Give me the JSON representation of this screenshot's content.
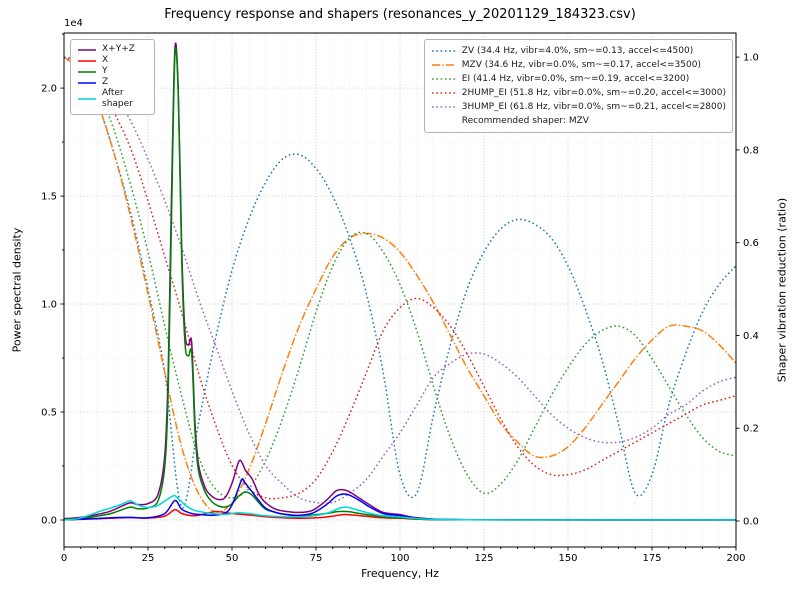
{
  "chart": {
    "title": "Frequency response and shapers (resonances_y_20201129_184323.csv)",
    "xlabel": "Frequency, Hz",
    "ylabel_left": "Power spectral density",
    "ylabel_right": "Shaper vibration reduction (ratio)",
    "offset_text": "1e4"
  },
  "legend_psd": {
    "items": [
      {
        "label": "X+Y+Z",
        "color": "#800080",
        "dash": "none"
      },
      {
        "label": "X",
        "color": "#ff0000",
        "dash": "none"
      },
      {
        "label": "Y",
        "color": "#008000",
        "dash": "none"
      },
      {
        "label": "Z",
        "color": "#0000ff",
        "dash": "none"
      },
      {
        "label": "After shaper",
        "color": "#00d7d7",
        "dash": "none"
      }
    ]
  },
  "legend_shapers": {
    "items": [
      {
        "label": "ZV (34.4 Hz, vibr=4.0%, sm~=0.13, accel<=4500)",
        "color": "#1f77b4",
        "dash": "dotted"
      },
      {
        "label": "MZV (34.6 Hz, vibr=0.0%, sm~=0.17, accel<=3500)",
        "color": "#ff7f0e",
        "dash": "dashdot"
      },
      {
        "label": "EI (41.4 Hz, vibr=0.0%, sm~=0.19, accel<=3200)",
        "color": "#2ca02c",
        "dash": "dotted"
      },
      {
        "label": "2HUMP_EI (51.8 Hz, vibr=0.0%, sm~=0.20, accel<=3000)",
        "color": "#d62728",
        "dash": "dotted"
      },
      {
        "label": "3HUMP_EI (61.8 Hz, vibr=0.0%, sm~=0.21, accel<=2800)",
        "color": "#9467bd",
        "dash": "dotted"
      }
    ],
    "recommended": "Recommended shaper: MZV"
  },
  "chart_data": {
    "type": "line",
    "title": "Frequency response and shapers (resonances_y_20201129_184323.csv)",
    "xlabel": "Frequency, Hz",
    "ylabel_left": "Power spectral density",
    "ylabel_right": "Shaper vibration reduction (ratio)",
    "grid": {
      "major_color": "#bdbdbd",
      "minor_color": "#e8e8e8"
    },
    "x_axis": {
      "lim": [
        0,
        200
      ],
      "ticks": [
        0,
        25,
        50,
        75,
        100,
        125,
        150,
        175,
        200
      ],
      "tick_labels": [
        "0",
        "25",
        "50",
        "75",
        "100",
        "125",
        "150",
        "175",
        "200"
      ],
      "minor_step": 5
    },
    "y_axis_left": {
      "lim": [
        -1250,
        22550
      ],
      "ticks": [
        0,
        5000,
        10000,
        15000,
        20000
      ],
      "tick_labels": [
        "0.0",
        "0.5",
        "1.0",
        "1.5",
        "2.0"
      ],
      "offset_text": "1e4",
      "minor_step": 2500
    },
    "y_axis_right": {
      "lim": [
        -0.056,
        1.052
      ],
      "ticks": [
        0,
        0.2,
        0.4,
        0.6,
        0.8,
        1.0
      ],
      "tick_labels": [
        "0.0",
        "0.2",
        "0.4",
        "0.6",
        "0.8",
        "1.0"
      ]
    },
    "psd_series": [
      {
        "name": "X+Y+Z",
        "color": "#800080",
        "style": "solid",
        "x": [
          0,
          5,
          10,
          14,
          18,
          20,
          22,
          25,
          28,
          30,
          31,
          32,
          33,
          34,
          35,
          36,
          37,
          38,
          39,
          40,
          42,
          44,
          46,
          48,
          50,
          52,
          53,
          54,
          56,
          58,
          60,
          63,
          66,
          70,
          74,
          78,
          81,
          83,
          85,
          88,
          91,
          95,
          100,
          104,
          108,
          112,
          120,
          140,
          170,
          200
        ],
        "y": [
          60,
          120,
          260,
          420,
          700,
          800,
          720,
          760,
          1200,
          3000,
          6800,
          15000,
          21800,
          20000,
          12800,
          8700,
          8100,
          8200,
          4500,
          2600,
          1500,
          1100,
          950,
          1050,
          1700,
          2700,
          2650,
          2300,
          1900,
          1200,
          800,
          500,
          400,
          350,
          450,
          900,
          1350,
          1400,
          1300,
          1000,
          700,
          350,
          250,
          120,
          60,
          30,
          15,
          8,
          5,
          5
        ]
      },
      {
        "name": "X",
        "color": "#ff0000",
        "style": "solid",
        "x": [
          0,
          5,
          10,
          15,
          20,
          25,
          30,
          33,
          35,
          38,
          40,
          43,
          45,
          47,
          50,
          53,
          56,
          60,
          65,
          70,
          75,
          80,
          83,
          86,
          90,
          95,
          100,
          105,
          110,
          120,
          140,
          170,
          200
        ],
        "y": [
          10,
          30,
          60,
          90,
          110,
          90,
          180,
          480,
          300,
          200,
          220,
          330,
          390,
          370,
          300,
          260,
          220,
          150,
          100,
          80,
          100,
          180,
          250,
          230,
          170,
          100,
          80,
          40,
          20,
          10,
          5,
          5,
          5
        ]
      },
      {
        "name": "Y",
        "color": "#008000",
        "style": "solid",
        "x": [
          0,
          5,
          10,
          14,
          18,
          20,
          22,
          25,
          28,
          30,
          31,
          32,
          33,
          34,
          35,
          36,
          37,
          38,
          39,
          40,
          42,
          44,
          46,
          48,
          50,
          52,
          54,
          56,
          58,
          60,
          63,
          66,
          70,
          74,
          78,
          81,
          83,
          85,
          88,
          91,
          95,
          100,
          104,
          108,
          112,
          120,
          140,
          170,
          200
        ],
        "y": [
          40,
          80,
          180,
          300,
          520,
          600,
          520,
          560,
          900,
          2500,
          6000,
          14000,
          21500,
          19800,
          12300,
          8200,
          7600,
          7700,
          4100,
          2300,
          1300,
          850,
          650,
          600,
          750,
          1100,
          1300,
          1150,
          800,
          500,
          350,
          250,
          200,
          230,
          300,
          380,
          400,
          380,
          300,
          230,
          150,
          100,
          60,
          30,
          15,
          8,
          5,
          5,
          5
        ]
      },
      {
        "name": "Z",
        "color": "#0000ff",
        "style": "solid",
        "x": [
          0,
          5,
          10,
          15,
          20,
          25,
          30,
          33,
          35,
          38,
          40,
          44,
          48,
          50,
          52,
          53,
          54,
          56,
          58,
          60,
          63,
          66,
          70,
          74,
          78,
          81,
          83,
          85,
          88,
          91,
          95,
          100,
          105,
          110,
          120,
          140,
          170,
          200
        ],
        "y": [
          10,
          40,
          70,
          110,
          120,
          100,
          300,
          900,
          500,
          300,
          260,
          220,
          320,
          700,
          1500,
          1900,
          1700,
          1300,
          900,
          550,
          350,
          260,
          220,
          320,
          700,
          1100,
          1200,
          1150,
          900,
          600,
          300,
          200,
          100,
          40,
          15,
          8,
          5,
          5
        ]
      },
      {
        "name": "After shaper",
        "color": "#00d7d7",
        "style": "solid",
        "x": [
          0,
          4,
          8,
          11,
          14,
          17,
          19,
          20,
          22,
          25,
          28,
          30,
          32,
          33,
          34,
          36,
          38,
          40,
          44,
          48,
          50,
          52,
          55,
          58,
          62,
          66,
          70,
          75,
          79,
          82,
          84,
          87,
          90,
          94,
          100,
          105,
          110,
          120,
          140,
          170,
          200
        ],
        "y": [
          5,
          60,
          250,
          420,
          560,
          720,
          860,
          880,
          700,
          580,
          680,
          880,
          1080,
          1130,
          1000,
          700,
          500,
          400,
          300,
          260,
          300,
          340,
          300,
          230,
          170,
          150,
          150,
          210,
          350,
          550,
          600,
          480,
          350,
          220,
          140,
          70,
          30,
          10,
          5,
          5,
          5
        ]
      }
    ],
    "shaper_x": [
      0,
      5,
      10,
      15,
      20,
      25,
      30,
      35,
      40,
      45,
      50,
      55,
      60,
      65,
      70,
      75,
      80,
      85,
      90,
      95,
      100,
      105,
      110,
      115,
      120,
      125,
      130,
      135,
      140,
      145,
      150,
      155,
      160,
      165,
      170,
      175,
      180,
      185,
      190,
      195,
      200
    ],
    "shaper_series": [
      {
        "name": "ZV",
        "freq": 34.4,
        "color": "#1f77b4",
        "style": "dotted",
        "y": [
          1.0,
          0.97,
          0.9,
          0.79,
          0.66,
          0.5,
          0.32,
          0.03,
          0.21,
          0.39,
          0.54,
          0.65,
          0.73,
          0.78,
          0.79,
          0.76,
          0.7,
          0.61,
          0.49,
          0.32,
          0.1,
          0.06,
          0.23,
          0.38,
          0.5,
          0.58,
          0.63,
          0.65,
          0.64,
          0.61,
          0.55,
          0.46,
          0.35,
          0.21,
          0.06,
          0.1,
          0.25,
          0.36,
          0.45,
          0.51,
          0.55
        ]
      },
      {
        "name": "MZV",
        "freq": 34.6,
        "color": "#ff7f0e",
        "style": "dashdot",
        "y": [
          1.0,
          0.97,
          0.9,
          0.79,
          0.65,
          0.49,
          0.32,
          0.16,
          0.06,
          0.02,
          0.04,
          0.11,
          0.21,
          0.32,
          0.42,
          0.5,
          0.57,
          0.61,
          0.62,
          0.61,
          0.58,
          0.53,
          0.47,
          0.4,
          0.33,
          0.27,
          0.21,
          0.17,
          0.14,
          0.14,
          0.16,
          0.2,
          0.25,
          0.3,
          0.35,
          0.39,
          0.42,
          0.42,
          0.41,
          0.38,
          0.34
        ]
      },
      {
        "name": "EI",
        "freq": 41.4,
        "color": "#2ca02c",
        "style": "dotted",
        "y": [
          1.0,
          0.98,
          0.93,
          0.84,
          0.72,
          0.58,
          0.42,
          0.27,
          0.14,
          0.07,
          0.05,
          0.07,
          0.13,
          0.22,
          0.33,
          0.45,
          0.55,
          0.61,
          0.62,
          0.58,
          0.51,
          0.41,
          0.29,
          0.18,
          0.1,
          0.06,
          0.08,
          0.13,
          0.2,
          0.27,
          0.33,
          0.38,
          0.41,
          0.42,
          0.4,
          0.35,
          0.29,
          0.23,
          0.18,
          0.15,
          0.14
        ]
      },
      {
        "name": "2HUMP_EI",
        "freq": 51.8,
        "color": "#d62728",
        "style": "dotted",
        "y": [
          1.0,
          0.99,
          0.95,
          0.88,
          0.8,
          0.69,
          0.57,
          0.45,
          0.32,
          0.21,
          0.12,
          0.07,
          0.05,
          0.05,
          0.06,
          0.09,
          0.15,
          0.23,
          0.32,
          0.41,
          0.46,
          0.48,
          0.46,
          0.42,
          0.36,
          0.29,
          0.22,
          0.16,
          0.12,
          0.1,
          0.1,
          0.11,
          0.13,
          0.15,
          0.17,
          0.19,
          0.21,
          0.23,
          0.25,
          0.26,
          0.27
        ]
      },
      {
        "name": "3HUMP_EI",
        "freq": 61.8,
        "color": "#9467bd",
        "style": "dotted",
        "y": [
          1.0,
          0.99,
          0.97,
          0.92,
          0.86,
          0.78,
          0.69,
          0.59,
          0.48,
          0.38,
          0.28,
          0.19,
          0.12,
          0.08,
          0.05,
          0.04,
          0.04,
          0.06,
          0.09,
          0.14,
          0.19,
          0.25,
          0.31,
          0.34,
          0.36,
          0.36,
          0.34,
          0.31,
          0.27,
          0.23,
          0.2,
          0.18,
          0.17,
          0.17,
          0.18,
          0.2,
          0.23,
          0.25,
          0.28,
          0.3,
          0.31
        ]
      }
    ]
  }
}
